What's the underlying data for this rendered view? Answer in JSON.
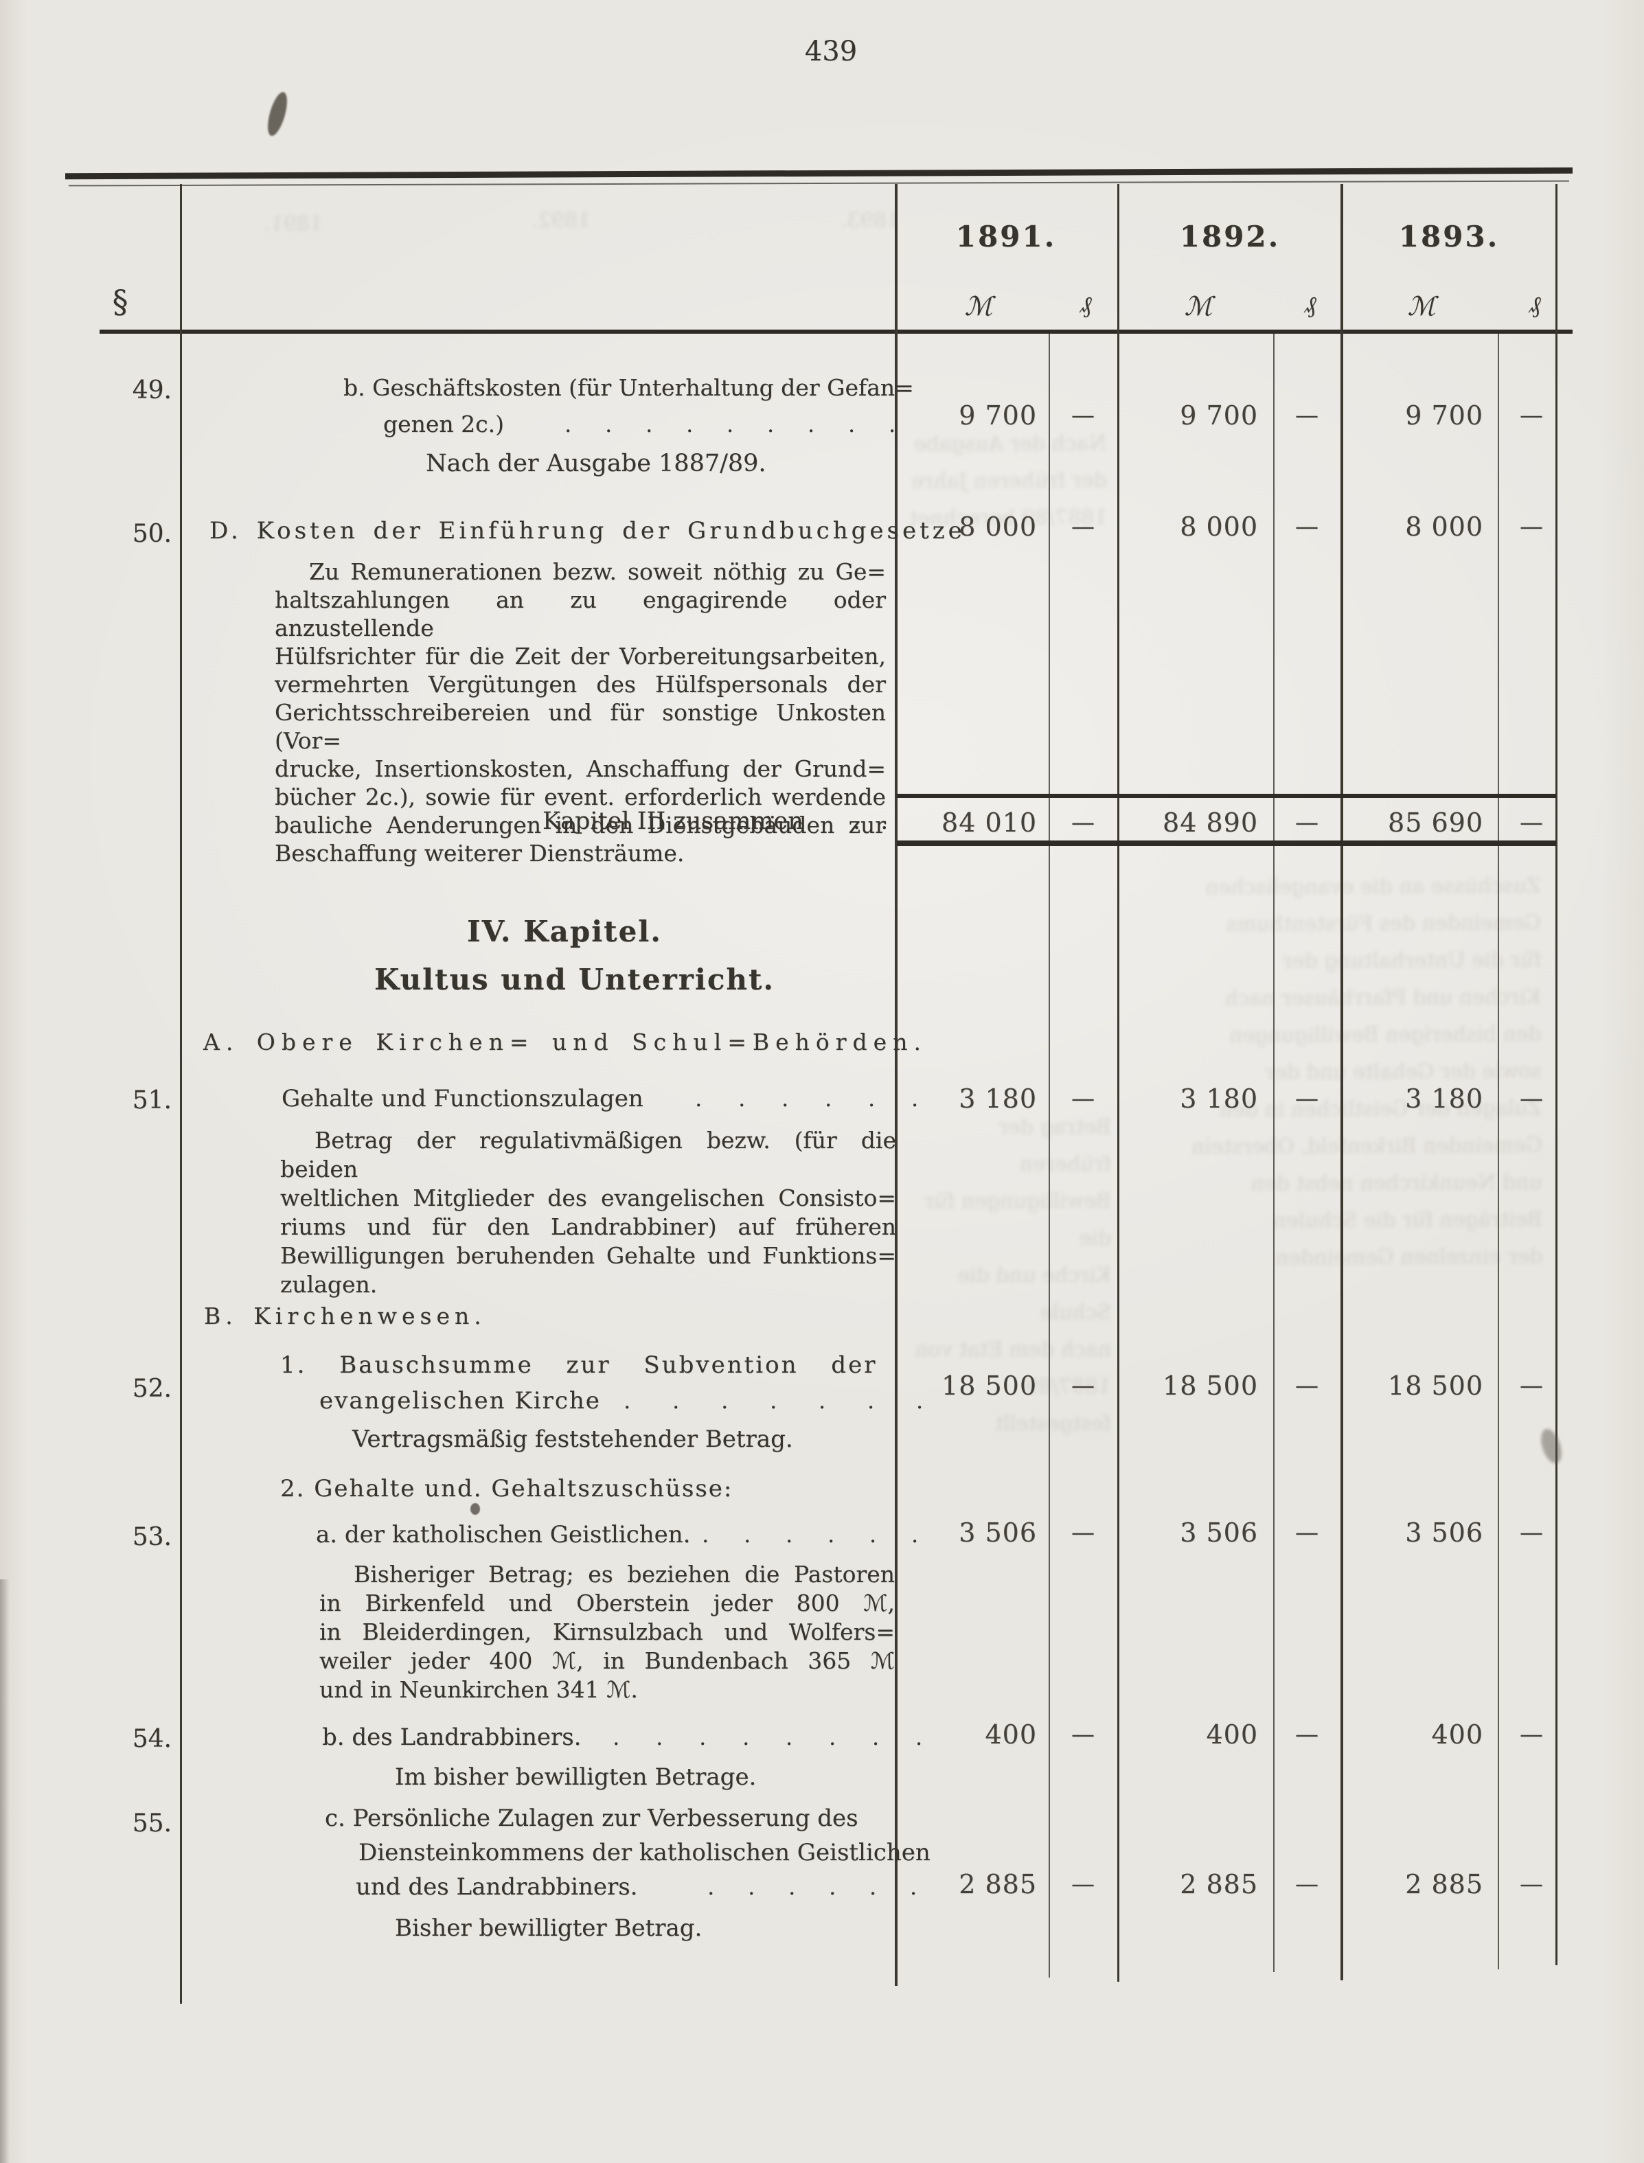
{
  "page": {
    "number": "439"
  },
  "header": {
    "section_symbol": "§",
    "years": [
      "1891.",
      "1892.",
      "1893."
    ],
    "currency_mark": "ℳ",
    "currency_pfennig": "₰"
  },
  "rows": {
    "r49": {
      "section": "49.",
      "item_line1": "b. Geschäftskosten (für Unterhaltung der Gefan=",
      "item_line2": "genen 2c.)",
      "leader": ". . . . . . . . .",
      "note": "Nach der Ausgabe 1887/89.",
      "amounts": [
        "9 700",
        "—",
        "9 700",
        "—",
        "9 700",
        "—"
      ]
    },
    "r50": {
      "section": "50.",
      "title": "D. Kosten der Einführung der Grundbuchgesetze",
      "para": [
        "Zu Remunerationen bezw. soweit nöthig zu Ge=",
        "haltszahlungen an zu engagirende oder anzustellende",
        "Hülfsrichter für die Zeit der Vorbereitungsarbeiten,",
        "vermehrten Vergütungen des Hülfspersonals der",
        "Gerichtsschreibereien und für sonstige Unkosten (Vor=",
        "drucke, Insertionskosten, Anschaffung der Grund=",
        "bücher 2c.), sowie für event. erforderlich werdende",
        "bauliche Aenderungen in den Dienstgebäuden zur",
        "Beschaffung weiterer Diensträume."
      ],
      "amounts": [
        "8 000",
        "—",
        "8 000",
        "—",
        "8 000",
        "—"
      ]
    },
    "total": {
      "label": "Kapitel III zusammen",
      "leader": ". .",
      "amounts": [
        "84 010",
        "—",
        "84 890",
        "—",
        "85 690",
        "—"
      ]
    },
    "chapter": {
      "number_title": "IV. Kapitel.",
      "name_title": "Kultus und Unterricht."
    },
    "section_a": "A. Obere Kirchen= und Schul=Behörden.",
    "r51": {
      "section": "51.",
      "label": "Gehalte und Functionszulagen",
      "leader": ". . . . . .",
      "para": [
        "Betrag der regulativmäßigen bezw. (für die beiden",
        "weltlichen Mitglieder des evangelischen Consisto=",
        "riums und für den Landrabbiner) auf früheren",
        "Bewilligungen beruhenden Gehalte und Funktions=",
        "zulagen."
      ],
      "amounts": [
        "3 180",
        "—",
        "3 180",
        "—",
        "3 180",
        "—"
      ]
    },
    "section_b": "B. Kirchenwesen.",
    "r52": {
      "section": "52.",
      "item_line1": "1. Bauschsumme zur Subvention der",
      "item_line2": "evangelischen Kirche",
      "leader": ". . . . . . .",
      "note": "Vertragsmäßig feststehender Betrag.",
      "amounts": [
        "18 500",
        "—",
        "18 500",
        "—",
        "18 500",
        "—"
      ]
    },
    "subheading_2": "2. Gehalte und. Gehaltszuschüsse:",
    "r53": {
      "section": "53.",
      "label": "a. der katholischen Geistlichen.",
      "leader": ". . . . . .",
      "para": [
        "Bisheriger Betrag; es beziehen die Pastoren",
        "in Birkenfeld und Oberstein jeder 800 ℳ,",
        "in Bleiderdingen, Kirnsulzbach und Wolfers=",
        "weiler jeder 400 ℳ, in Bundenbach 365 ℳ",
        "und in Neunkirchen 341 ℳ."
      ],
      "amounts": [
        "3 506",
        "—",
        "3 506",
        "—",
        "3 506",
        "—"
      ]
    },
    "r54": {
      "section": "54.",
      "label": "b. des Landrabbiners.",
      "leader": ". . . . . . . .",
      "note": "Im bisher bewilligten Betrage.",
      "amounts": [
        "400",
        "—",
        "400",
        "—",
        "400",
        "—"
      ]
    },
    "r55": {
      "section": "55.",
      "item_line1": "c. Persönliche Zulagen zur Verbesserung des",
      "item_line2": "Diensteinkommens der katholischen Geistlichen",
      "item_line3": "und des Landrabbiners.",
      "leader": ". . . . . .",
      "note": "Bisher bewilligter Betrag.",
      "amounts": [
        "2 885",
        "—",
        "2 885",
        "—",
        "2 885",
        "—"
      ]
    }
  },
  "decor": {
    "ghost_header": [
      "1891.",
      "1892.",
      "1893."
    ],
    "ghost_block1": [
      "Zuschüsse an die evangelischen",
      "Gemeinden des Fürstenthums",
      "für die Unterhaltung der",
      "Kirchen und Pfarrhäuser nach",
      "den bisherigen Bewilligungen",
      "sowie der Gehalte und der",
      "Zulagen der Geistlichen in den",
      "Gemeinden Birkenfeld, Oberstein",
      "und Neunkirchen nebst den",
      "Beiträgen für die Schulen",
      "der einzelnen Gemeinden"
    ],
    "ghost_block2": [
      "Betrag der früheren",
      "Bewilligungen für die",
      "Kirche und die Schule",
      "nach dem Etat von",
      "1887/89 festgestellt"
    ],
    "ghost_block3": [
      "Nach der Ausgabe",
      "der früheren Jahre",
      "1887/89 berechnet"
    ]
  }
}
